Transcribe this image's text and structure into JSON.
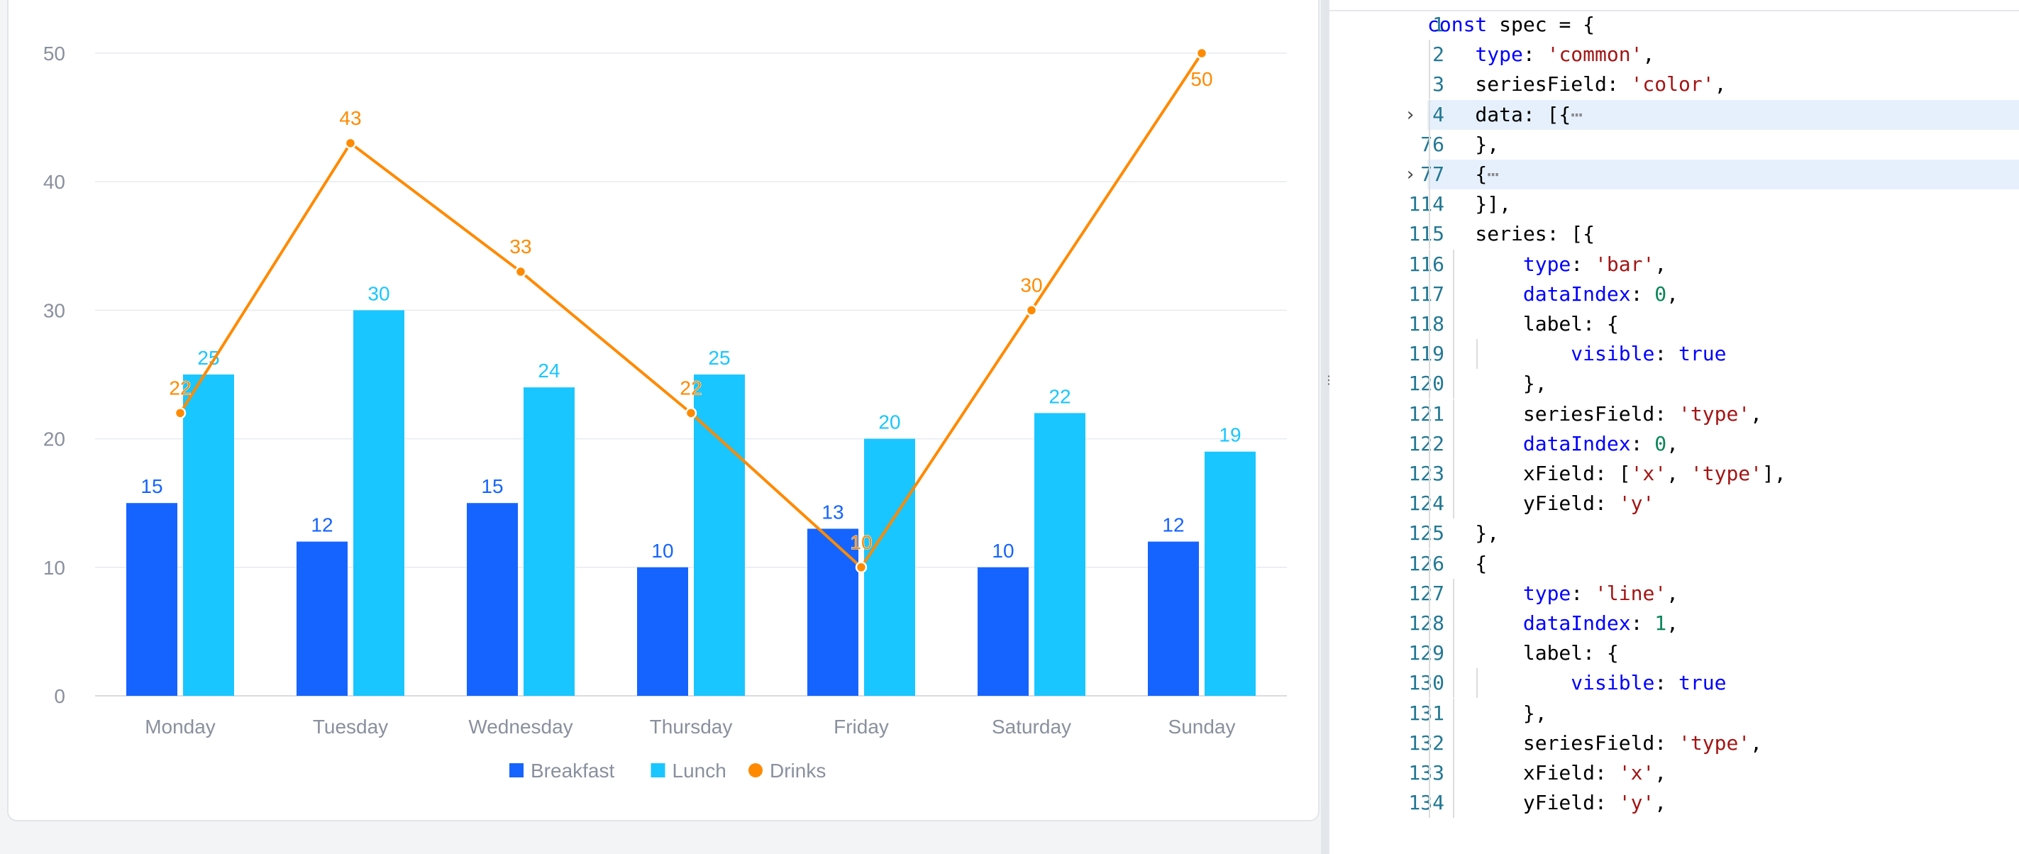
{
  "chart_data": {
    "type": "bar",
    "categories": [
      "Monday",
      "Tuesday",
      "Wednesday",
      "Thursday",
      "Friday",
      "Saturday",
      "Sunday"
    ],
    "series": [
      {
        "name": "Breakfast",
        "type": "bar",
        "color": "#1664ff",
        "values": [
          15,
          12,
          15,
          10,
          13,
          10,
          12
        ]
      },
      {
        "name": "Lunch",
        "type": "bar",
        "color": "#1ac6ff",
        "values": [
          25,
          30,
          24,
          25,
          20,
          22,
          19
        ]
      },
      {
        "name": "Drinks",
        "type": "line",
        "color": "#ff8a00",
        "values": [
          22,
          43,
          33,
          22,
          10,
          30,
          50
        ]
      }
    ],
    "ylim": [
      0,
      50
    ],
    "yticks": [
      0,
      10,
      20,
      30,
      40,
      50
    ],
    "grid": true,
    "legend": "bottom",
    "title": "",
    "xlabel": "",
    "ylabel": ""
  },
  "editor": {
    "lines": [
      {
        "n": "1",
        "code": "const spec = {"
      },
      {
        "n": "2",
        "code": "  type: 'common',"
      },
      {
        "n": "3",
        "code": "  seriesField: 'color',"
      },
      {
        "n": "4",
        "code": "  data: [{⋯",
        "folded": true
      },
      {
        "n": "76",
        "code": "  },"
      },
      {
        "n": "77",
        "code": "  {⋯",
        "folded": true
      },
      {
        "n": "114",
        "code": "  }],"
      },
      {
        "n": "115",
        "code": "  series: [{"
      },
      {
        "n": "116",
        "code": "    type: 'bar',"
      },
      {
        "n": "117",
        "code": "    dataIndex: 0,"
      },
      {
        "n": "118",
        "code": "    label: {"
      },
      {
        "n": "119",
        "code": "      visible: true"
      },
      {
        "n": "120",
        "code": "    },"
      },
      {
        "n": "121",
        "code": "    seriesField: 'type',"
      },
      {
        "n": "122",
        "code": "    dataIndex: 0,"
      },
      {
        "n": "123",
        "code": "    xField: ['x', 'type'],"
      },
      {
        "n": "124",
        "code": "    yField: 'y'"
      },
      {
        "n": "125",
        "code": "  },"
      },
      {
        "n": "126",
        "code": "  {"
      },
      {
        "n": "127",
        "code": "    type: 'line',"
      },
      {
        "n": "128",
        "code": "    dataIndex: 1,"
      },
      {
        "n": "129",
        "code": "    label: {"
      },
      {
        "n": "130",
        "code": "      visible: true"
      },
      {
        "n": "131",
        "code": "    },"
      },
      {
        "n": "132",
        "code": "    seriesField: 'type',"
      },
      {
        "n": "133",
        "code": "    xField: 'x',"
      },
      {
        "n": "134",
        "code": "    yField: 'y',"
      }
    ]
  },
  "colors": {
    "axis_label": "#89909d",
    "grid": "#e8eaee",
    "keyword": "#0000ff",
    "string": "#a31515",
    "number": "#098658",
    "line_number": "#237893",
    "highlight": "#e6f0fd"
  }
}
